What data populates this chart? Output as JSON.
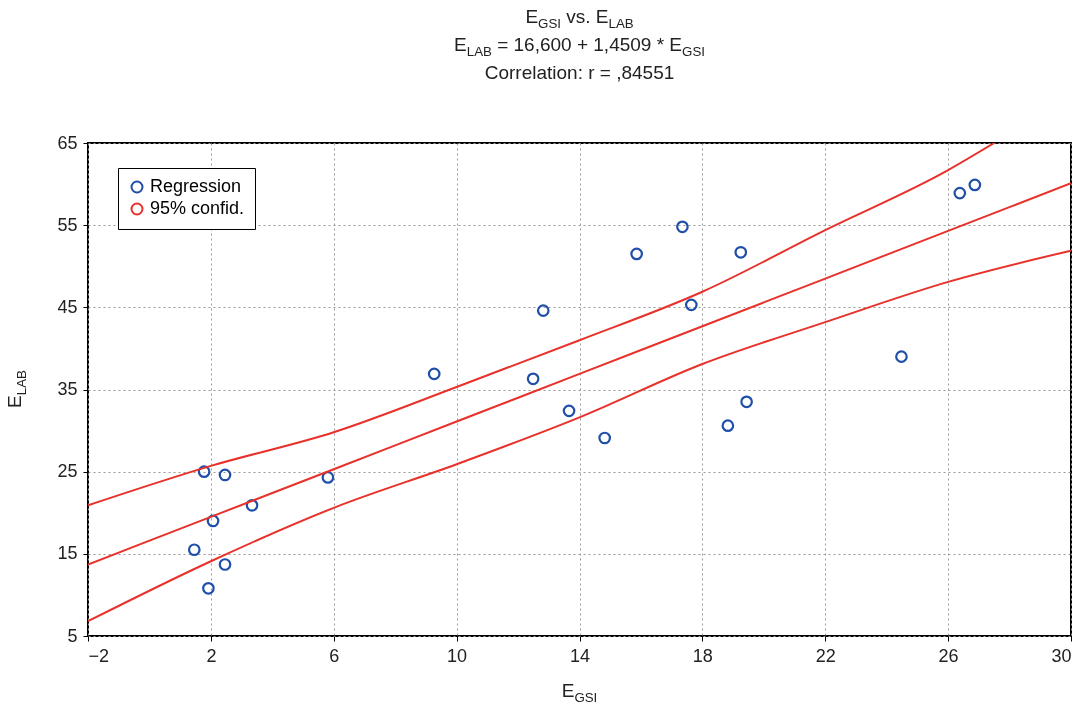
{
  "chart_data": {
    "type": "scatter",
    "title": "E$_{GSI}$ vs. E$_{LAB}$",
    "subtitle": "E$_{LAB}$ = 16,600 + 1,4509 * E$_{GSI}$",
    "annotations": [
      "Correlation: r = ,84551"
    ],
    "xlabel": "E$_{GSI}$",
    "ylabel": "E$_{LAB}$",
    "xlim": [
      -2,
      30
    ],
    "ylim": [
      5,
      65
    ],
    "xticks": [
      -2,
      2,
      6,
      10,
      14,
      18,
      22,
      26,
      30
    ],
    "yticks": [
      5,
      15,
      25,
      35,
      45,
      55,
      65
    ],
    "grid": true,
    "legend": "top left",
    "marker": "circle",
    "series": [
      {
        "name": "Regression",
        "color": "#1f4fa8",
        "x": [
          1.78,
          2.46,
          2.07,
          3.34,
          5.81,
          1.46,
          2.46,
          1.92,
          9.27,
          12.49,
          12.82,
          13.66,
          14.82,
          15.86,
          17.35,
          17.64,
          19.25,
          18.83,
          19.44,
          24.48,
          26.38,
          26.87
        ],
        "values": [
          25.0,
          24.6,
          19.0,
          20.9,
          24.3,
          15.5,
          13.7,
          10.8,
          36.9,
          36.3,
          44.6,
          32.4,
          29.1,
          51.5,
          54.8,
          45.3,
          51.7,
          30.6,
          33.5,
          39.0,
          58.9,
          59.9
        ]
      },
      {
        "type": "line",
        "marker": "none",
        "color": "#e8312a",
        "line_style": "solid",
        "x": [
          -2,
          2,
          6,
          10,
          14,
          18,
          22,
          26,
          30
        ],
        "values": [
          13.7,
          19.5,
          25.3,
          31.1,
          36.9,
          42.7,
          48.5,
          54.3,
          60.1
        ]
      },
      {
        "name": "95% confid.",
        "type": "line",
        "marker": "none",
        "color": "#e8312a",
        "line_style": "solid",
        "x": [
          -2,
          2,
          6,
          10,
          14,
          18,
          22,
          26,
          27.5
        ],
        "values": [
          20.9,
          25.7,
          29.8,
          35.3,
          41.0,
          46.9,
          54.4,
          61.7,
          65
        ]
      },
      {
        "type": "line",
        "marker": "none",
        "color": "#e8312a",
        "line_style": "solid",
        "x": [
          -2,
          2,
          6,
          10,
          14,
          18,
          22,
          26,
          30
        ],
        "values": [
          6.8,
          14.1,
          20.6,
          25.9,
          31.6,
          38.1,
          43.2,
          48.1,
          51.9
        ]
      }
    ]
  }
}
